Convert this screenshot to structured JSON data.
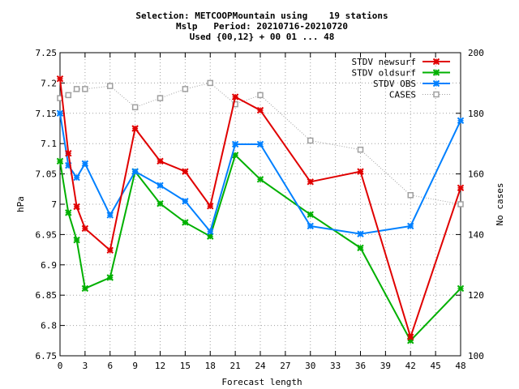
{
  "chart_data": {
    "type": "line",
    "title_lines": [
      "Selection: METCOOPMountain using    19 stations",
      "Mslp   Period: 20210716-20210720",
      "Used {00,12} + 00 01 ... 48"
    ],
    "xlabel": "Forecast length",
    "ylabel": "hPa",
    "y2label": "No cases",
    "x_ticks": [
      0,
      3,
      6,
      9,
      12,
      15,
      18,
      21,
      24,
      27,
      30,
      33,
      36,
      39,
      42,
      45,
      48
    ],
    "xlim": [
      0,
      48
    ],
    "ylim": [
      6.75,
      7.25
    ],
    "y_ticks": [
      6.75,
      6.8,
      6.85,
      6.9,
      6.95,
      7,
      7.05,
      7.1,
      7.15,
      7.2,
      7.25
    ],
    "y_tick_labels": [
      "6.75",
      "6.8",
      "6.85",
      "6.9",
      "6.95",
      "7",
      "7.05",
      "7.1",
      "7.15",
      "7.2",
      "7.25"
    ],
    "y2lim": [
      100,
      200
    ],
    "y2_ticks": [
      100,
      120,
      140,
      160,
      180,
      200
    ],
    "legend_position": "top-right",
    "series": [
      {
        "name": "STDV newsurf",
        "color": "#e00000",
        "marker": "x",
        "style": "solid",
        "x": [
          0,
          1,
          2,
          3,
          6,
          9,
          12,
          15,
          18,
          21,
          24,
          30,
          36,
          42,
          48
        ],
        "y": [
          7.207,
          7.084,
          6.996,
          6.96,
          6.924,
          7.125,
          7.071,
          7.054,
          6.997,
          7.177,
          7.155,
          7.037,
          7.054,
          6.781,
          7.027
        ]
      },
      {
        "name": "STDV oldsurf",
        "color": "#00b000",
        "marker": "x",
        "style": "solid",
        "x": [
          0,
          1,
          2,
          3,
          6,
          9,
          12,
          15,
          18,
          21,
          24,
          30,
          36,
          42,
          48
        ],
        "y": [
          7.071,
          6.986,
          6.941,
          6.861,
          6.879,
          7.054,
          7.001,
          6.97,
          6.947,
          7.081,
          7.041,
          6.983,
          6.928,
          6.775,
          6.861
        ]
      },
      {
        "name": "STDV OBS",
        "color": "#0080ff",
        "marker": "x",
        "style": "solid",
        "x": [
          0,
          1,
          2,
          3,
          6,
          9,
          12,
          15,
          18,
          21,
          24,
          30,
          36,
          42,
          48
        ],
        "y": [
          7.15,
          7.064,
          7.044,
          7.067,
          6.982,
          7.054,
          7.031,
          7.005,
          6.955,
          7.099,
          7.099,
          6.964,
          6.951,
          6.964,
          7.138
        ]
      },
      {
        "name": "CASES",
        "color": "#a0a0a0",
        "marker": "square",
        "style": "dotted",
        "axis": "y2",
        "x": [
          0,
          1,
          2,
          3,
          6,
          9,
          12,
          15,
          18,
          21,
          24,
          30,
          36,
          42,
          48
        ],
        "y": [
          185,
          186,
          188,
          188,
          189,
          182,
          185,
          188,
          190,
          183,
          186,
          171,
          168,
          153,
          150
        ]
      }
    ]
  }
}
